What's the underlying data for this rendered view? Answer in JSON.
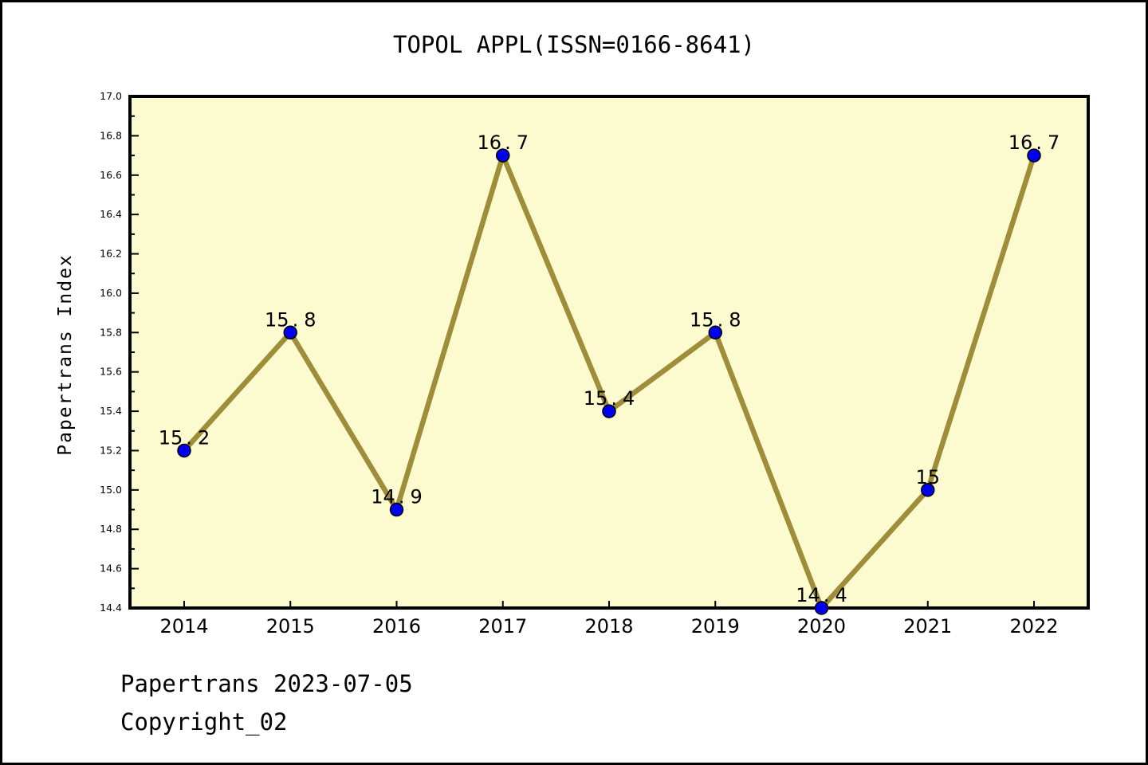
{
  "title": "TOPOL APPL(ISSN=0166-8641)",
  "footer": {
    "line1": "Papertrans 2023-07-05",
    "line2": "Copyright_02"
  },
  "chart_data": {
    "type": "line",
    "title": "TOPOL APPL(ISSN=0166-8641)",
    "xlabel": "",
    "ylabel": "Papertrans Index",
    "categories": [
      "2014",
      "2015",
      "2016",
      "2017",
      "2018",
      "2019",
      "2020",
      "2021",
      "2022"
    ],
    "series": [
      {
        "name": "Papertrans Index",
        "values": [
          15.2,
          15.8,
          14.9,
          16.7,
          15.4,
          15.8,
          14.4,
          15,
          16.7
        ]
      }
    ],
    "point_labels": [
      "15.2",
      "15.8",
      "14.9",
      "16.7",
      "15.4",
      "15.8",
      "14.4",
      "15",
      "16.7"
    ],
    "ylim": [
      14.4,
      17.0
    ],
    "ytick_major": 0.2,
    "ytick_minor": 0.1,
    "grid": false,
    "legend": "none",
    "colors": {
      "line": "#9E8E3A",
      "marker_fill": "#0000EE",
      "marker_edge": "#000000",
      "plot_bg": "#FCFACF",
      "axis": "#000000",
      "text": "#000000"
    }
  }
}
